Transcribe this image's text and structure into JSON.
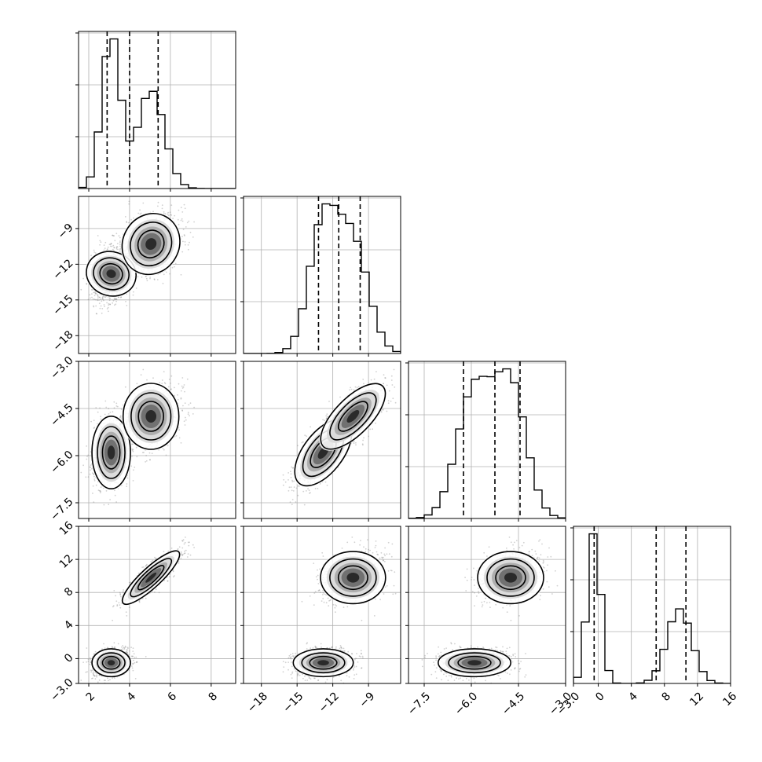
{
  "chart_data": {
    "type": "corner",
    "n_params": 4,
    "grid": true,
    "colors": {
      "line": "#000000",
      "grid": "#b0b0b0",
      "points": "#7a7a7a",
      "density_dark": "#000000",
      "density_light": "#ffffff"
    },
    "params": [
      {
        "index": 0,
        "range": [
          1.5,
          9.2
        ],
        "ticks": [
          2,
          4,
          6,
          8
        ],
        "tick_labels": [
          "2",
          "4",
          "6",
          "8"
        ],
        "quantiles": [
          2.9,
          4.0,
          5.4
        ],
        "modes": [
          {
            "mu": 3.1,
            "sd": 0.45,
            "w": 0.52
          },
          {
            "mu": 5.05,
            "sd": 0.65,
            "w": 0.48
          }
        ]
      },
      {
        "index": 1,
        "range": [
          -19.5,
          -6.3
        ],
        "ticks": [
          -18,
          -15,
          -12,
          -9
        ],
        "tick_labels": [
          "−18",
          "−15",
          "−12",
          "−9"
        ],
        "quantiles": [
          -13.2,
          -11.5,
          -9.7
        ],
        "modes": [
          {
            "mu": -12.8,
            "sd": 1.2,
            "w": 0.52
          },
          {
            "mu": -10.3,
            "sd": 1.3,
            "w": 0.48
          }
        ]
      },
      {
        "index": 2,
        "range": [
          -8.0,
          -3.0
        ],
        "ticks": [
          -7.5,
          -6.0,
          -4.5,
          -3.0
        ],
        "tick_labels": [
          "−7.5",
          "−6.0",
          "−4.5",
          "−3.0"
        ],
        "quantiles": [
          -6.25,
          -5.25,
          -4.45
        ],
        "modes": [
          {
            "mu": -5.9,
            "sd": 0.55,
            "w": 0.52
          },
          {
            "mu": -4.75,
            "sd": 0.5,
            "w": 0.48
          }
        ]
      },
      {
        "index": 3,
        "range": [
          -3.0,
          16.0
        ],
        "ticks": [
          -3,
          0,
          4,
          8,
          12,
          16
        ],
        "tick_labels": [
          "−3.0",
          "0",
          "4",
          "8",
          "12",
          "16"
        ],
        "quantiles": [
          -0.5,
          7.0,
          10.6
        ],
        "modes": [
          {
            "mu": -0.5,
            "sd": 0.8,
            "w": 0.52
          },
          {
            "mu": 9.8,
            "sd": 1.5,
            "w": 0.48
          }
        ]
      }
    ],
    "scatter_clusters": [
      {
        "center": [
          3.1,
          -12.8,
          -5.9,
          -0.5
        ],
        "sd": [
          0.45,
          1.2,
          0.55,
          0.8
        ],
        "weight": 0.52
      },
      {
        "center": [
          5.05,
          -10.3,
          -4.75,
          9.8
        ],
        "sd": [
          0.65,
          1.3,
          0.5,
          1.5
        ],
        "weight": 0.48
      }
    ],
    "corr_second_cluster_p0_p3": 0.85,
    "contour_levels": 3
  }
}
